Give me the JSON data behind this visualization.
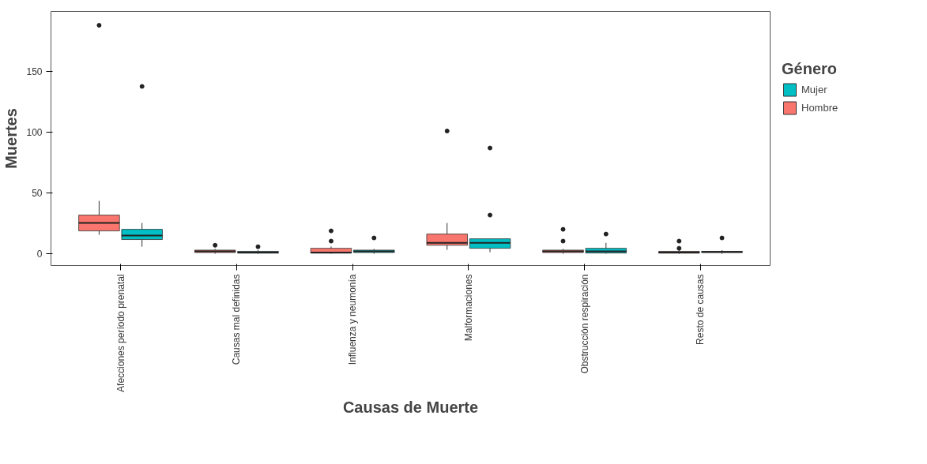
{
  "chart_data": {
    "type": "box",
    "xlabel": "Causas de Muerte",
    "ylabel": "Muertes",
    "legend_title": "Género",
    "categories": [
      "Afecciones período prenatal",
      "Causas mal definidas",
      "Influenza y neumonía",
      "Malformaciones",
      "Obstrucción respiración",
      "Resto de causas"
    ],
    "ylim": [
      -9.7,
      199.4
    ],
    "yticks": [
      0,
      50,
      100,
      150
    ],
    "grid": false,
    "legend": "right",
    "series": [
      {
        "name": "Hombre",
        "color": "#f8766d",
        "boxes": [
          {
            "low": 15.6,
            "q1": 18.8,
            "median": 25.3,
            "q3": 31.8,
            "high": 43.5,
            "outliers": [
              188
            ]
          },
          {
            "low": 0,
            "q1": 1,
            "median": 2,
            "q3": 3,
            "high": 4,
            "outliers": [
              7
            ]
          },
          {
            "low": 0,
            "q1": 0.5,
            "median": 1,
            "q3": 4.5,
            "high": 6,
            "outliers": [
              10.4,
              18.8
            ]
          },
          {
            "low": 3.2,
            "q1": 7,
            "median": 9,
            "q3": 16.2,
            "high": 25.3,
            "outliers": [
              101
            ]
          },
          {
            "low": 0,
            "q1": 1,
            "median": 2,
            "q3": 3,
            "high": 4,
            "outliers": [
              10.4,
              20.1
            ]
          },
          {
            "low": 0,
            "q1": 0.5,
            "median": 1,
            "q3": 2,
            "high": 3.5,
            "outliers": [
              4.5,
              10.4
            ]
          }
        ]
      },
      {
        "name": "Mujer",
        "color": "#00bfc4",
        "boxes": [
          {
            "low": 5.8,
            "q1": 11.7,
            "median": 15,
            "q3": 20.1,
            "high": 25.3,
            "outliers": [
              137.7
            ]
          },
          {
            "low": 0,
            "q1": 0.5,
            "median": 1,
            "q3": 2,
            "high": 3,
            "outliers": [
              5.8
            ]
          },
          {
            "low": 0,
            "q1": 1,
            "median": 2,
            "q3": 3,
            "high": 4,
            "outliers": [
              13
            ]
          },
          {
            "low": 1.3,
            "q1": 4.5,
            "median": 9,
            "q3": 12.3,
            "high": 12.3,
            "outliers": [
              31.8,
              87
            ]
          },
          {
            "low": 0,
            "q1": 0.6,
            "median": 2,
            "q3": 4.5,
            "high": 9,
            "outliers": [
              16.2
            ]
          },
          {
            "low": 0,
            "q1": 1,
            "median": 1.5,
            "q3": 2,
            "high": 3,
            "outliers": [
              13
            ]
          }
        ]
      }
    ]
  }
}
